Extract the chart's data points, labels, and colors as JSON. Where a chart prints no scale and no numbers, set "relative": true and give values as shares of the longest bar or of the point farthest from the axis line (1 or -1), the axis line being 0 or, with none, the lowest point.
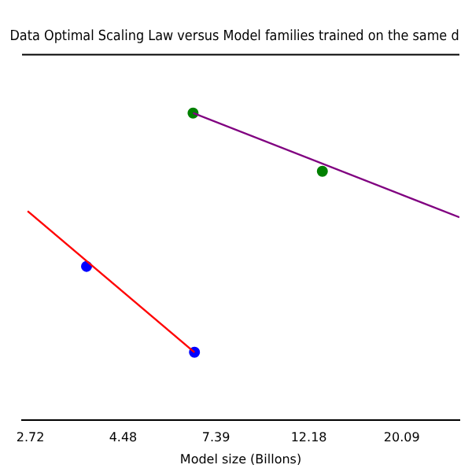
{
  "chart_data": {
    "type": "line",
    "title": "Data Optimal Scaling Law versus Model families trained on the same d",
    "xlabel": "Model size (Billons)",
    "relative": true,
    "log": "x",
    "xlim": [
      2.6,
      27.4
    ],
    "xticks": [
      2.72,
      4.48,
      7.39,
      12.18,
      20.09
    ],
    "grid": false,
    "legend": false,
    "series": [
      {
        "type": "line",
        "marker": "none",
        "color": "#ff0000",
        "x": [
          2.68,
          6.58
        ],
        "values": [
          0.68,
          0.22
        ]
      },
      {
        "type": "scatter",
        "marker": "circle",
        "color": "#0000ff",
        "x": [
          3.68,
          6.58
        ],
        "values": [
          0.5,
          0.22
        ]
      },
      {
        "type": "line",
        "marker": "none",
        "color": "#800080",
        "x": [
          6.53,
          27.4
        ],
        "values": [
          1.0,
          0.66
        ]
      },
      {
        "type": "scatter",
        "marker": "circle",
        "color": "#008000",
        "x": [
          6.53,
          13.1
        ],
        "values": [
          1.0,
          0.81
        ]
      }
    ]
  }
}
